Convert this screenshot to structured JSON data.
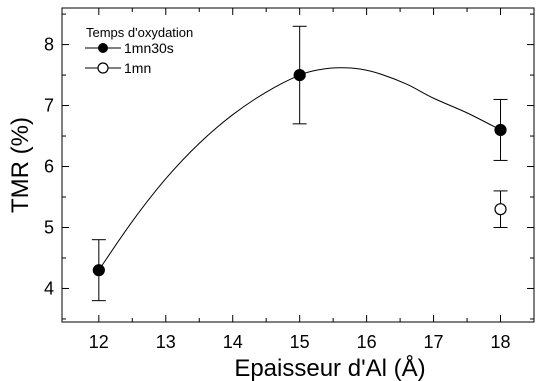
{
  "chart_data": {
    "type": "scatter",
    "xlabel": "Epaisseur d'Al (Å)",
    "ylabel": "TMR (%)",
    "xlim": [
      11.45,
      18.5
    ],
    "ylim": [
      3.45,
      8.6
    ],
    "xticks": [
      12,
      13,
      14,
      15,
      16,
      17,
      18
    ],
    "yticks": [
      4,
      5,
      6,
      7,
      8
    ],
    "grid": false,
    "legend": {
      "title": "Temps d'oxydation",
      "placement": "top-left"
    },
    "series": [
      {
        "name": "1mn30s",
        "marker": "filled-circle",
        "x": [
          12,
          15,
          18
        ],
        "y": [
          4.3,
          7.5,
          6.6
        ],
        "yerr_low": [
          3.8,
          6.7,
          6.1
        ],
        "yerr_high": [
          4.8,
          8.3,
          7.1
        ]
      },
      {
        "name": "1mn",
        "marker": "open-circle",
        "x": [
          18
        ],
        "y": [
          5.3
        ],
        "yerr_low": [
          5.0
        ],
        "yerr_high": [
          5.6
        ]
      }
    ],
    "fit_curve": {
      "x": [
        12,
        12.5,
        13,
        13.5,
        14,
        14.5,
        15,
        15.3,
        15.6,
        15.9,
        16.2,
        16.6,
        17,
        17.5,
        18
      ],
      "y": [
        4.3,
        5.1,
        5.8,
        6.38,
        6.85,
        7.22,
        7.5,
        7.59,
        7.62,
        7.6,
        7.52,
        7.35,
        7.12,
        6.88,
        6.6
      ]
    },
    "colors": {
      "line": "#000000",
      "background": "#ffffff"
    }
  }
}
